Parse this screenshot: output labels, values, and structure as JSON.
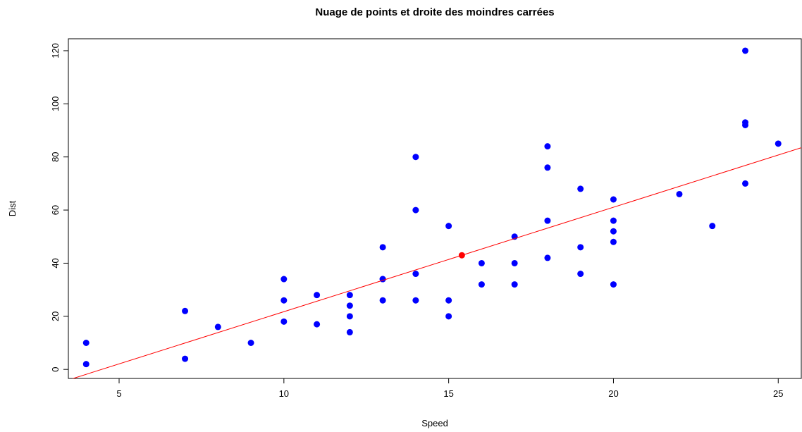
{
  "chart_data": {
    "type": "scatter",
    "title": "Nuage de points et droite des moindres carrées",
    "x_label": "Speed",
    "y_label": "Dist",
    "x": [
      4,
      4,
      7,
      7,
      8,
      9,
      10,
      10,
      10,
      11,
      11,
      12,
      12,
      12,
      12,
      13,
      13,
      13,
      13,
      14,
      14,
      14,
      14,
      15,
      15,
      15,
      16,
      16,
      17,
      17,
      17,
      18,
      18,
      18,
      18,
      19,
      19,
      19,
      20,
      20,
      20,
      20,
      20,
      22,
      23,
      24,
      24,
      24,
      24,
      25
    ],
    "values": [
      2,
      10,
      4,
      22,
      16,
      10,
      18,
      26,
      34,
      17,
      28,
      14,
      20,
      24,
      28,
      26,
      34,
      34,
      46,
      26,
      36,
      60,
      80,
      20,
      26,
      54,
      32,
      40,
      32,
      40,
      50,
      42,
      56,
      76,
      84,
      36,
      46,
      68,
      32,
      48,
      52,
      56,
      64,
      66,
      54,
      70,
      92,
      93,
      120,
      85
    ],
    "color": "#0000ff",
    "mean_point": {
      "x": 15.4,
      "y": 42.98,
      "color": "#ff0000"
    },
    "line": {
      "intercept": -17.58,
      "slope": 3.932,
      "color": "#ff0000"
    },
    "xlim": [
      3.46,
      25.7
    ],
    "ylim": [
      -3.4,
      124.5
    ],
    "xticks": [
      5,
      10,
      15,
      20,
      25
    ],
    "yticks": [
      0,
      20,
      40,
      60,
      80,
      100,
      120
    ]
  }
}
